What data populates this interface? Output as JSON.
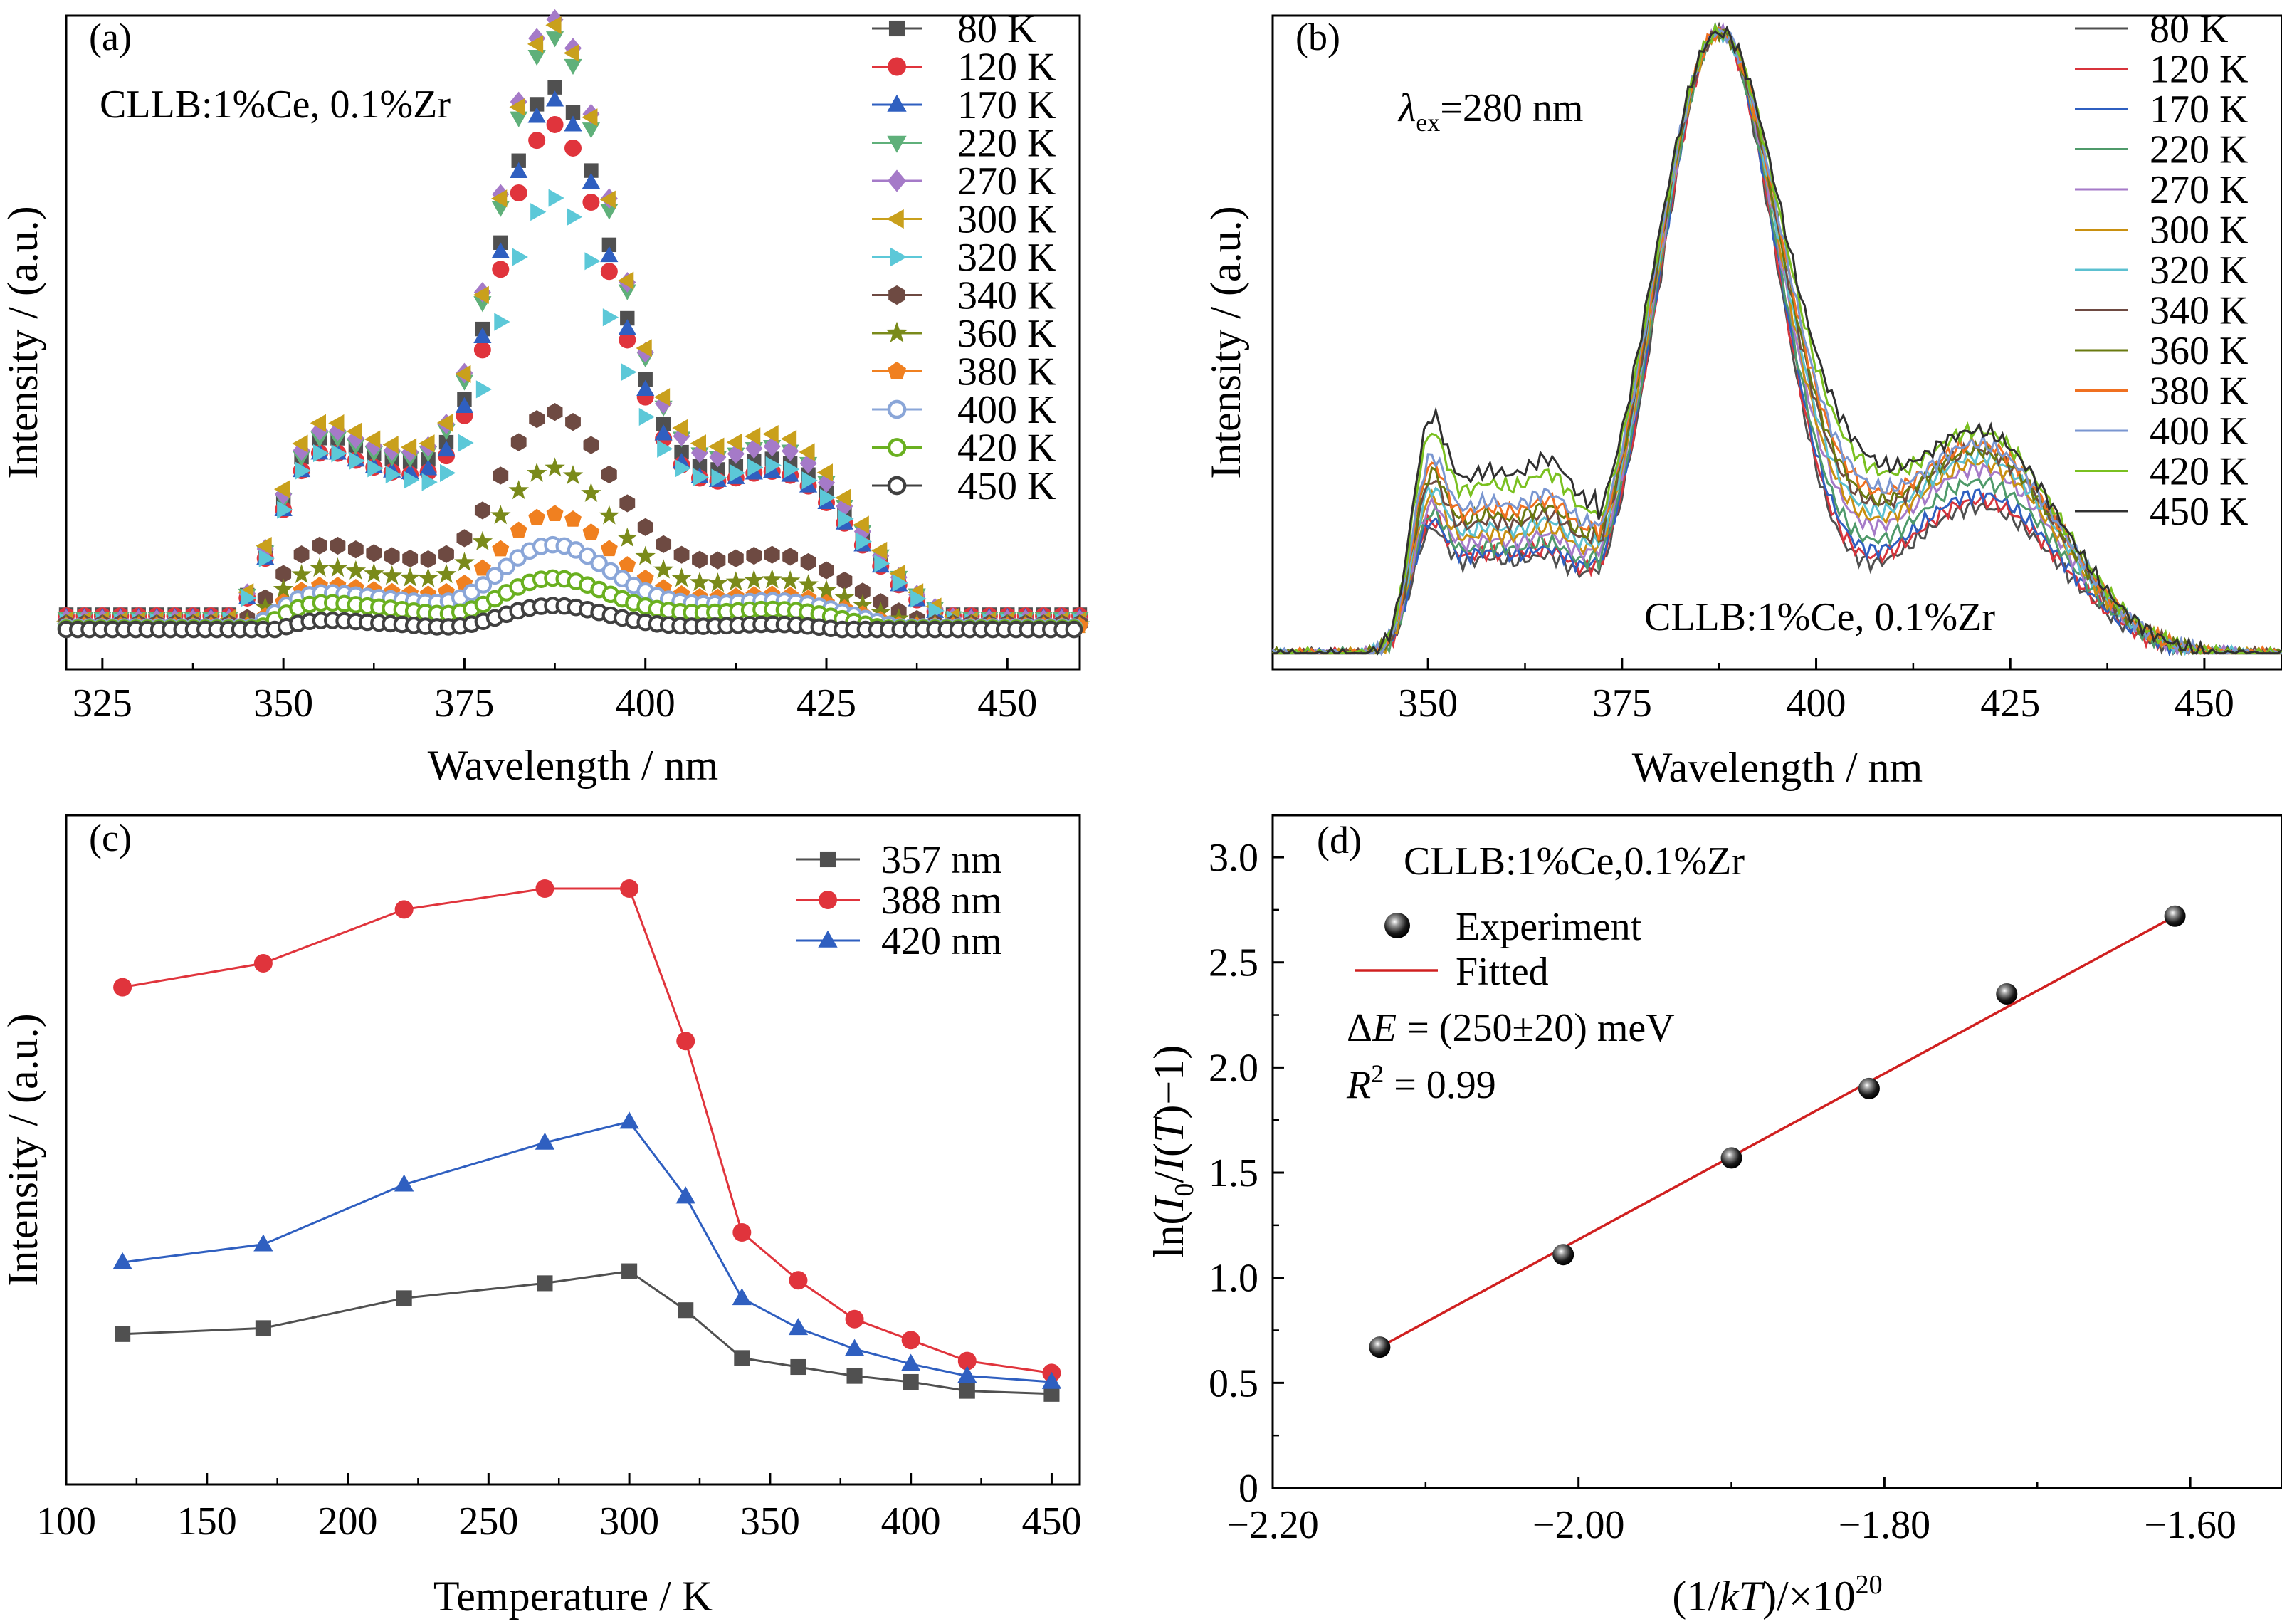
{
  "chart_data": [
    {
      "id": "a",
      "type": "scatter",
      "panel_label": "(a)",
      "annotation": "CLLB:1%Ce, 0.1%Zr",
      "xlabel": "Wavelength / nm",
      "ylabel": "Intensity / (a.u.)",
      "xlim": [
        320,
        460
      ],
      "ylim": [
        0,
        1
      ],
      "xticks": [
        325,
        350,
        375,
        400,
        425,
        450
      ],
      "grid": false,
      "legend": "top-right",
      "series": [
        {
          "name": "80 K",
          "marker": "square",
          "color": "#505050",
          "peak": 0.88,
          "s1": 0.26,
          "s3": 0.28,
          "base": 0.06
        },
        {
          "name": "120 K",
          "marker": "circle",
          "color": "#e0343c",
          "peak": 0.82,
          "s1": 0.24,
          "s3": 0.26,
          "base": 0.06
        },
        {
          "name": "170 K",
          "marker": "triangle",
          "color": "#2f5fc0",
          "peak": 0.86,
          "s1": 0.24,
          "s3": 0.26,
          "base": 0.06
        },
        {
          "name": "220 K",
          "marker": "tri-down",
          "color": "#5fb07a",
          "peak": 0.96,
          "s1": 0.26,
          "s3": 0.3,
          "base": 0.06
        },
        {
          "name": "270 K",
          "marker": "diamond",
          "color": "#a57ac8",
          "peak": 0.99,
          "s1": 0.27,
          "s3": 0.3,
          "base": 0.06
        },
        {
          "name": "300 K",
          "marker": "tri-left",
          "color": "#c9a01c",
          "peak": 0.98,
          "s1": 0.28,
          "s3": 0.32,
          "base": 0.06
        },
        {
          "name": "320 K",
          "marker": "tri-right",
          "color": "#5cc8d8",
          "peak": 0.7,
          "s1": 0.24,
          "s3": 0.27,
          "base": 0.06
        },
        {
          "name": "340 K",
          "marker": "hexagon",
          "color": "#6e4a42",
          "peak": 0.36,
          "s1": 0.12,
          "s3": 0.13,
          "base": 0.05
        },
        {
          "name": "360 K",
          "marker": "star",
          "color": "#7a8a1a",
          "peak": 0.27,
          "s1": 0.09,
          "s3": 0.09,
          "base": 0.05
        },
        {
          "name": "380 K",
          "marker": "pentagon",
          "color": "#f08020",
          "peak": 0.2,
          "s1": 0.07,
          "s3": 0.07,
          "base": 0.04
        },
        {
          "name": "400 K",
          "marker": "ring",
          "color": "#8aa6d8",
          "peak": 0.15,
          "s1": 0.06,
          "s3": 0.06,
          "base": 0.04
        },
        {
          "name": "420 K",
          "marker": "ring",
          "color": "#6ab020",
          "peak": 0.1,
          "s1": 0.05,
          "s3": 0.05,
          "base": 0.03
        },
        {
          "name": "450 K",
          "marker": "ring",
          "color": "#404040",
          "peak": 0.06,
          "s1": 0.03,
          "s3": 0.03,
          "base": 0.02
        }
      ]
    },
    {
      "id": "b",
      "type": "line",
      "panel_label": "(b)",
      "annotation_lambda": "λ",
      "annotation_sub": "ex",
      "annotation_rest": "=280 nm",
      "annotation2": "CLLB:1%Ce, 0.1%Zr",
      "xlabel": "Wavelength / nm",
      "ylabel": "Intensity / (a.u.)",
      "xlim": [
        330,
        460
      ],
      "ylim": [
        0,
        1
      ],
      "xticks": [
        350,
        375,
        400,
        425,
        450
      ],
      "grid": false,
      "legend": "top-right",
      "series": [
        {
          "name": "80 K",
          "color": "#505050",
          "s1": 0.16,
          "s3": 0.24,
          "w": 1.0
        },
        {
          "name": "120 K",
          "color": "#d8343c",
          "s1": 0.17,
          "s3": 0.25,
          "w": 1.01
        },
        {
          "name": "170 K",
          "color": "#2f5fc0",
          "s1": 0.17,
          "s3": 0.26,
          "w": 1.02
        },
        {
          "name": "220 K",
          "color": "#4f9a6a",
          "s1": 0.18,
          "s3": 0.28,
          "w": 1.03
        },
        {
          "name": "270 K",
          "color": "#a57ac8",
          "s1": 0.19,
          "s3": 0.3,
          "w": 1.05
        },
        {
          "name": "300 K",
          "color": "#c99010",
          "s1": 0.2,
          "s3": 0.31,
          "w": 1.06
        },
        {
          "name": "320 K",
          "color": "#5cc0d0",
          "s1": 0.21,
          "s3": 0.32,
          "w": 1.07
        },
        {
          "name": "340 K",
          "color": "#6e4a42",
          "s1": 0.22,
          "s3": 0.33,
          "w": 1.08
        },
        {
          "name": "360 K",
          "color": "#6a7a10",
          "s1": 0.23,
          "s3": 0.33,
          "w": 1.09
        },
        {
          "name": "380 K",
          "color": "#f07020",
          "s1": 0.24,
          "s3": 0.34,
          "w": 1.1
        },
        {
          "name": "400 K",
          "color": "#7a96d0",
          "s1": 0.25,
          "s3": 0.34,
          "w": 1.11
        },
        {
          "name": "420 K",
          "color": "#7ac020",
          "s1": 0.28,
          "s3": 0.36,
          "w": 1.13
        },
        {
          "name": "450 K",
          "color": "#303030",
          "s1": 0.3,
          "s3": 0.36,
          "w": 1.15
        }
      ]
    },
    {
      "id": "c",
      "type": "line",
      "panel_label": "(c)",
      "xlabel": "Temperature / K",
      "ylabel": "Intensity / (a.u.)",
      "xlim": [
        100,
        460
      ],
      "ylim": [
        0,
        1
      ],
      "xticks": [
        100,
        150,
        200,
        250,
        300,
        350,
        400,
        450
      ],
      "x": [
        120,
        170,
        220,
        270,
        300,
        320,
        340,
        360,
        380,
        400,
        420,
        450
      ],
      "grid": false,
      "legend": "top-right",
      "series": [
        {
          "name": "357 nm",
          "marker": "square",
          "color": "#505050",
          "values": [
            0.18,
            0.19,
            0.24,
            0.265,
            0.285,
            0.22,
            0.14,
            0.125,
            0.11,
            0.1,
            0.085,
            0.08
          ]
        },
        {
          "name": "388 nm",
          "marker": "circle",
          "color": "#e0343c",
          "values": [
            0.76,
            0.8,
            0.89,
            0.925,
            0.925,
            0.67,
            0.35,
            0.27,
            0.205,
            0.17,
            0.135,
            0.115
          ]
        },
        {
          "name": "420 nm",
          "marker": "triangle",
          "color": "#2f5fc0",
          "values": [
            0.3,
            0.33,
            0.43,
            0.5,
            0.535,
            0.41,
            0.24,
            0.19,
            0.155,
            0.13,
            0.11,
            0.1
          ]
        }
      ]
    },
    {
      "id": "d",
      "type": "scatter",
      "panel_label": "(d)",
      "annotation": "CLLB:1%Ce,0.1%Zr",
      "xlabel_pre": "(1/",
      "xlabel_it": "kT",
      "xlabel_post": ")/×10",
      "xlabel_sup": "20",
      "ylabel_pre": "ln(",
      "ylabel_i": "I",
      "ylabel_sub": "0",
      "ylabel_mid": "/",
      "ylabel_it2": "I",
      "ylabel_paren": "(",
      "ylabel_T": "T",
      "ylabel_post": ")−1)",
      "xlim": [
        -2.2,
        -1.54
      ],
      "ylim": [
        0,
        3.2
      ],
      "xticks": [
        -2.2,
        -2.0,
        -1.8,
        -1.6
      ],
      "xtick_labels": [
        "−2.20",
        "−2.00",
        "−1.80",
        "−1.60"
      ],
      "yticks": [
        0,
        0.5,
        1.0,
        1.5,
        2.0,
        2.5,
        3.0
      ],
      "ytick_labels": [
        "0",
        "0.5",
        "1.0",
        "1.5",
        "2.0",
        "2.5",
        "3.0"
      ],
      "grid": false,
      "legend": "top-left",
      "experiment": {
        "name": "Experiment",
        "x": [
          -2.13,
          -2.01,
          -1.9,
          -1.81,
          -1.72,
          -1.61
        ],
        "y": [
          0.67,
          1.11,
          1.57,
          1.9,
          2.35,
          2.72
        ]
      },
      "fit": {
        "name": "Fitted",
        "color": "#d02020",
        "x": [
          -2.13,
          -1.61
        ],
        "y": [
          0.67,
          2.72
        ]
      },
      "delta_e_pre": "Δ",
      "delta_e_it": "E",
      "delta_e_post": " = (250±20) meV",
      "r2_it": "R",
      "r2_sup": "2",
      "r2_post": " = 0.99"
    }
  ]
}
